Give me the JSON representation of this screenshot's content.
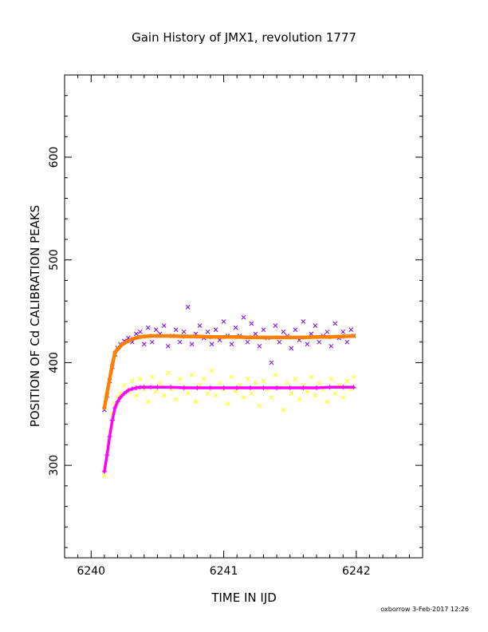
{
  "chart_data": {
    "type": "scatter",
    "title": "Gain History of JMX1, revolution 1777",
    "xlabel": "TIME IN IJD",
    "ylabel": "POSITION OF Cd CALIBRATION PEAKS",
    "xlim": [
      6239.8,
      6242.5
    ],
    "ylim": [
      210,
      680
    ],
    "x_ticks": [
      6240,
      6241,
      6242
    ],
    "y_ticks": [
      300,
      400,
      500,
      600
    ],
    "grid": false,
    "legend": "none",
    "series": [
      {
        "marker": "x",
        "color": "#7b00ff",
        "x": [
          6240.1,
          6240.12,
          6240.14,
          6240.16,
          6240.18,
          6240.2,
          6240.22,
          6240.25,
          6240.28,
          6240.31,
          6240.34,
          6240.37,
          6240.4,
          6240.43,
          6240.46,
          6240.49,
          6240.52,
          6240.55,
          6240.58,
          6240.61,
          6240.64,
          6240.67,
          6240.7,
          6240.73,
          6240.76,
          6240.79,
          6240.82,
          6240.85,
          6240.88,
          6240.91,
          6240.94,
          6240.97,
          6241.0,
          6241.03,
          6241.06,
          6241.09,
          6241.12,
          6241.15,
          6241.18,
          6241.21,
          6241.24,
          6241.27,
          6241.3,
          6241.33,
          6241.36,
          6241.39,
          6241.42,
          6241.45,
          6241.48,
          6241.51,
          6241.54,
          6241.57,
          6241.6,
          6241.63,
          6241.66,
          6241.69,
          6241.72,
          6241.75,
          6241.78,
          6241.81,
          6241.84,
          6241.87,
          6241.9,
          6241.93,
          6241.96,
          6241.98
        ],
        "y": [
          354,
          368,
          382,
          396,
          408,
          414,
          418,
          421,
          424,
          420,
          428,
          430,
          418,
          434,
          420,
          432,
          428,
          436,
          416,
          426,
          432,
          420,
          430,
          454,
          418,
          428,
          436,
          424,
          430,
          418,
          432,
          422,
          440,
          426,
          418,
          434,
          426,
          444,
          420,
          438,
          428,
          416,
          432,
          424,
          400,
          436,
          420,
          430,
          426,
          414,
          432,
          422,
          440,
          418,
          428,
          436,
          420,
          426,
          430,
          416,
          438,
          424,
          430,
          420,
          432,
          426
        ]
      },
      {
        "marker": "x",
        "color": "#ffff00",
        "x": [
          6240.1,
          6240.12,
          6240.14,
          6240.16,
          6240.18,
          6240.2,
          6240.22,
          6240.25,
          6240.28,
          6240.31,
          6240.34,
          6240.37,
          6240.4,
          6240.43,
          6240.46,
          6240.49,
          6240.52,
          6240.55,
          6240.58,
          6240.61,
          6240.64,
          6240.67,
          6240.7,
          6240.73,
          6240.76,
          6240.79,
          6240.82,
          6240.85,
          6240.88,
          6240.91,
          6240.94,
          6240.97,
          6241.0,
          6241.03,
          6241.06,
          6241.09,
          6241.12,
          6241.15,
          6241.18,
          6241.21,
          6241.24,
          6241.27,
          6241.3,
          6241.33,
          6241.36,
          6241.39,
          6241.42,
          6241.45,
          6241.48,
          6241.51,
          6241.54,
          6241.57,
          6241.6,
          6241.63,
          6241.66,
          6241.69,
          6241.72,
          6241.75,
          6241.78,
          6241.81,
          6241.84,
          6241.87,
          6241.9,
          6241.93,
          6241.96,
          6241.98
        ],
        "y": [
          290,
          312,
          334,
          350,
          360,
          366,
          370,
          378,
          372,
          382,
          368,
          384,
          374,
          362,
          386,
          372,
          380,
          368,
          390,
          374,
          364,
          384,
          376,
          370,
          388,
          362,
          378,
          384,
          370,
          392,
          368,
          380,
          374,
          360,
          386,
          372,
          378,
          366,
          384,
          370,
          380,
          358,
          382,
          374,
          366,
          388,
          376,
          354,
          380,
          370,
          384,
          364,
          378,
          372,
          386,
          368,
          380,
          374,
          362,
          384,
          370,
          378,
          366,
          382,
          374,
          386
        ]
      },
      {
        "marker": "dot",
        "color": "#ff7f00",
        "x": [
          6240.1,
          6240.12,
          6240.14,
          6240.16,
          6240.18,
          6240.2,
          6240.22,
          6240.25,
          6240.28,
          6240.31,
          6240.34,
          6240.37,
          6240.4,
          6240.45,
          6240.5,
          6240.6,
          6240.7,
          6240.8,
          6240.9,
          6241.0,
          6241.1,
          6241.2,
          6241.3,
          6241.4,
          6241.5,
          6241.6,
          6241.7,
          6241.8,
          6241.9,
          6241.98
        ],
        "y": [
          356,
          370,
          384,
          398,
          410,
          413,
          416,
          419,
          421,
          423,
          424,
          425,
          425.5,
          426,
          426,
          426,
          425.5,
          425.5,
          425,
          425,
          425,
          424.5,
          424.5,
          424.5,
          424.5,
          424.5,
          425,
          425,
          425.5,
          426
        ]
      },
      {
        "marker": "+",
        "color": "#ff00ff",
        "x": [
          6240.1,
          6240.12,
          6240.14,
          6240.16,
          6240.18,
          6240.2,
          6240.22,
          6240.25,
          6240.28,
          6240.31,
          6240.34,
          6240.37,
          6240.4,
          6240.45,
          6240.5,
          6240.6,
          6240.7,
          6240.8,
          6240.9,
          6241.0,
          6241.1,
          6241.2,
          6241.3,
          6241.4,
          6241.5,
          6241.6,
          6241.7,
          6241.8,
          6241.9,
          6241.98
        ],
        "y": [
          294,
          310,
          328,
          344,
          356,
          362,
          366,
          370,
          373,
          374.5,
          375.5,
          376,
          376,
          376,
          376,
          376,
          375.5,
          375.5,
          375.5,
          375.5,
          375.5,
          375.5,
          375.5,
          375.5,
          375.5,
          375.5,
          375.5,
          376,
          376,
          376
        ]
      }
    ]
  },
  "footer": {
    "credit": "oxborrow  3-Feb-2017 12:26"
  }
}
